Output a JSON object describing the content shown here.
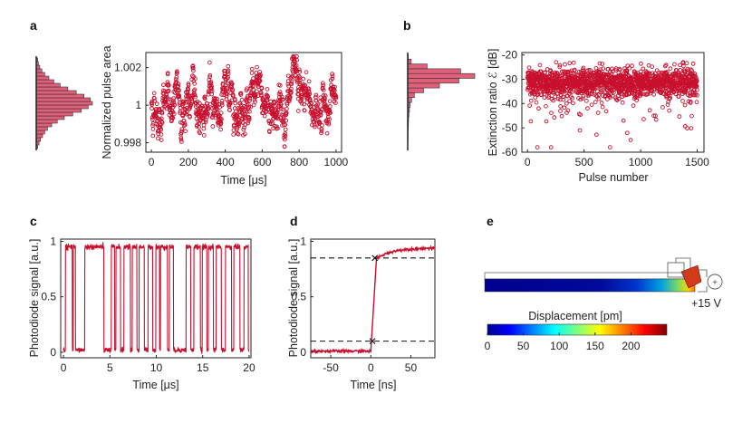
{
  "figure_labels": {
    "a": "a",
    "b": "b",
    "c": "c",
    "d": "d",
    "e": "e"
  },
  "colors": {
    "data": "#c8102e",
    "hist_fill": "#e0607a",
    "axis": "#222222",
    "dash": "#111111"
  },
  "chart_data": [
    {
      "id": "a",
      "type": "scatter",
      "xlabel": "Time [μs]",
      "ylabel": "Normalized pulse area",
      "xlim": [
        -30,
        1030
      ],
      "ylim": [
        0.9975,
        1.0028
      ],
      "xticks": [
        0,
        200,
        400,
        600,
        800,
        1000
      ],
      "yticks": [
        0.998,
        1,
        1.002
      ],
      "ytick_labels": [
        "0.998",
        "1",
        "1.002"
      ],
      "n_points": 1000,
      "x_range": [
        0,
        1000
      ],
      "mean": 1.0,
      "std": 0.0009,
      "min": 0.9978,
      "max": 1.0026,
      "side_histogram": {
        "orientation": "horizontal",
        "bin_edges": [
          0.9976,
          0.9978,
          0.998,
          0.9982,
          0.9984,
          0.9986,
          0.9988,
          0.999,
          0.9992,
          0.9994,
          0.9996,
          0.9998,
          1.0,
          1.0002,
          1.0004,
          1.0006,
          1.0008,
          1.001,
          1.0012,
          1.0014,
          1.0016,
          1.0018,
          1.002,
          1.0022,
          1.0024,
          1.0026
        ],
        "counts": [
          2,
          4,
          6,
          9,
          12,
          16,
          22,
          30,
          40,
          52,
          64,
          74,
          80,
          77,
          68,
          57,
          45,
          34,
          25,
          18,
          12,
          8,
          5,
          3,
          2
        ]
      }
    },
    {
      "id": "b",
      "type": "scatter",
      "xlabel": "Pulse number",
      "ylabel": "Extinction ratio ℰ [dB]",
      "xlim": [
        -50,
        1560
      ],
      "ylim": [
        -60,
        -19
      ],
      "xticks": [
        0,
        500,
        1000,
        1500
      ],
      "yticks": [
        -60,
        -50,
        -40,
        -30,
        -20
      ],
      "n_points": 1500,
      "x_range": [
        0,
        1500
      ],
      "mean": -31.5,
      "std": 3.5,
      "min": -58,
      "max": -23,
      "side_histogram": {
        "orientation": "horizontal",
        "bin_edges": [
          -60,
          -58,
          -56,
          -54,
          -52,
          -50,
          -48,
          -46,
          -44,
          -42,
          -40,
          -38,
          -36,
          -34,
          -32,
          -30,
          -28,
          -26,
          -24,
          -22,
          -20
        ],
        "counts": [
          1,
          1,
          2,
          2,
          3,
          4,
          5,
          7,
          10,
          14,
          22,
          38,
          90,
          180,
          290,
          380,
          300,
          110,
          20,
          3
        ]
      }
    },
    {
      "id": "c",
      "type": "line",
      "xlabel": "Time [μs]",
      "ylabel": "Photodiode signal [a.u.]",
      "xlim": [
        -0.3,
        20.2
      ],
      "ylim": [
        -0.05,
        1.02
      ],
      "xticks": [
        0,
        5,
        10,
        15,
        20
      ],
      "yticks": [
        0,
        0.5,
        1
      ],
      "levels": {
        "high": 0.95,
        "low": 0.02
      },
      "high_intervals_us": [
        [
          0.2,
          0.95
        ],
        [
          1.05,
          1.3
        ],
        [
          2.3,
          4.35
        ],
        [
          5.15,
          5.5
        ],
        [
          5.65,
          6.15
        ],
        [
          6.5,
          7.2
        ],
        [
          7.4,
          7.9
        ],
        [
          8.15,
          8.7
        ],
        [
          9.1,
          9.6
        ],
        [
          9.95,
          10.35
        ],
        [
          10.45,
          11.2
        ],
        [
          11.4,
          11.85
        ],
        [
          13.2,
          13.7
        ],
        [
          14.05,
          14.75
        ],
        [
          14.95,
          15.45
        ],
        [
          15.6,
          16.15
        ],
        [
          16.45,
          17.0
        ],
        [
          17.45,
          18.1
        ],
        [
          18.35,
          19.0
        ],
        [
          19.45,
          19.9
        ]
      ]
    },
    {
      "id": "d",
      "type": "line",
      "xlabel": "Time [ns]",
      "ylabel": "Photodiode signal [a.u.]",
      "xlim": [
        -75,
        80
      ],
      "ylim": [
        -0.05,
        1.02
      ],
      "xticks": [
        -50,
        0,
        50
      ],
      "yticks": [
        0,
        0.5,
        1
      ],
      "rise_edge_ns": [
        0,
        7
      ],
      "levels": {
        "low": 0.01,
        "high_start": 0.84,
        "high_end": 0.94
      },
      "thresholds": [
        0.1,
        0.85
      ],
      "markers": [
        [
          2,
          0.1
        ],
        [
          5,
          0.85
        ]
      ]
    },
    {
      "id": "e",
      "type": "heatmap",
      "colorbar_title": "Displacement [pm]",
      "colorbar_range": [
        0,
        250
      ],
      "colorbar_ticks": [
        0,
        50,
        100,
        150,
        200
      ],
      "voltage_label": "+15 V"
    }
  ]
}
